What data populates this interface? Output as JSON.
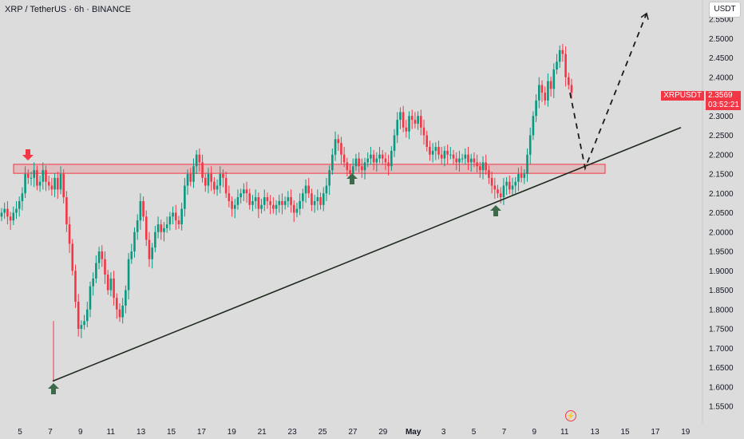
{
  "header": {
    "symbol_title": "XRP / TetherUS · 6h · BINANCE",
    "currency": "USDT"
  },
  "price_tags": {
    "symbol": "XRPUSDT",
    "last_price": "2.3569",
    "countdown": "03:52:21"
  },
  "colors": {
    "background": "#dcdcdc",
    "up": "#089981",
    "down": "#f23645",
    "zone": "#f23645",
    "trendline": "#1e2a1e",
    "arrow_up": "#3d6b4a",
    "arrow_down": "#f23645"
  },
  "icons": {
    "event": "lightning-icon"
  },
  "chart_data": {
    "type": "candlestick",
    "timeframe": "6h",
    "price_scale": {
      "ylim": [
        1.5,
        2.6
      ],
      "ticks": [
        "1.5500",
        "1.6000",
        "1.6500",
        "1.7000",
        "1.7500",
        "1.8000",
        "1.8500",
        "1.9000",
        "1.9500",
        "2.0000",
        "2.0500",
        "2.1000",
        "2.1500",
        "2.2000",
        "2.2500",
        "2.3000",
        "2.3500",
        "2.4000",
        "2.4500",
        "2.5000",
        "2.5500"
      ]
    },
    "time_axis": {
      "labels": [
        "5",
        "7",
        "9",
        "11",
        "13",
        "15",
        "17",
        "19",
        "21",
        "23",
        "25",
        "27",
        "29",
        "May",
        "3",
        "5",
        "7",
        "9",
        "11",
        "13",
        "15",
        "17",
        "19"
      ]
    },
    "candles_close": [
      2.05,
      2.06,
      2.04,
      2.03,
      2.05,
      2.06,
      2.08,
      2.1,
      2.15,
      2.14,
      2.14,
      2.16,
      2.12,
      2.13,
      2.16,
      2.13,
      2.12,
      2.11,
      2.14,
      2.11,
      2.15,
      2.09,
      2.02,
      1.97,
      1.9,
      1.82,
      1.75,
      1.76,
      1.77,
      1.8,
      1.86,
      1.88,
      1.92,
      1.95,
      1.93,
      1.89,
      1.85,
      1.88,
      1.83,
      1.8,
      1.78,
      1.81,
      1.85,
      1.93,
      1.95,
      2.0,
      2.03,
      2.08,
      2.04,
      1.98,
      1.93,
      1.96,
      2.0,
      2.02,
      2.0,
      2.01,
      2.02,
      2.04,
      2.05,
      2.03,
      2.02,
      2.06,
      2.12,
      2.15,
      2.13,
      2.17,
      2.2,
      2.18,
      2.14,
      2.12,
      2.15,
      2.13,
      2.11,
      2.12,
      2.15,
      2.14,
      2.1,
      2.08,
      2.06,
      2.07,
      2.09,
      2.1,
      2.11,
      2.1,
      2.07,
      2.08,
      2.09,
      2.06,
      2.07,
      2.09,
      2.08,
      2.07,
      2.06,
      2.07,
      2.08,
      2.07,
      2.08,
      2.09,
      2.07,
      2.05,
      2.06,
      2.08,
      2.1,
      2.12,
      2.1,
      2.07,
      2.08,
      2.09,
      2.07,
      2.1,
      2.12,
      2.16,
      2.2,
      2.24,
      2.23,
      2.2,
      2.18,
      2.16,
      2.15,
      2.17,
      2.19,
      2.17,
      2.16,
      2.18,
      2.19,
      2.2,
      2.18,
      2.19,
      2.2,
      2.19,
      2.18,
      2.17,
      2.21,
      2.25,
      2.29,
      2.31,
      2.27,
      2.26,
      2.3,
      2.29,
      2.28,
      2.3,
      2.27,
      2.25,
      2.22,
      2.2,
      2.21,
      2.22,
      2.2,
      2.19,
      2.21,
      2.2,
      2.2,
      2.19,
      2.18,
      2.19,
      2.19,
      2.2,
      2.18,
      2.19,
      2.18,
      2.17,
      2.16,
      2.18,
      2.16,
      2.14,
      2.12,
      2.11,
      2.1,
      2.09,
      2.12,
      2.13,
      2.11,
      2.12,
      2.13,
      2.15,
      2.14,
      2.15,
      2.2,
      2.25,
      2.3,
      2.34,
      2.38,
      2.36,
      2.34,
      2.39,
      2.37,
      2.42,
      2.44,
      2.47,
      2.46,
      2.4,
      2.38,
      2.36
    ],
    "markers": [
      {
        "type": "arrow-down",
        "x_label": "5",
        "price": 2.2
      },
      {
        "type": "arrow-up",
        "x_label": "7",
        "price": 1.6
      },
      {
        "type": "arrow-up",
        "x_label": "27",
        "price": 2.12
      },
      {
        "type": "arrow-up",
        "x_label": "7",
        "price": 2.05
      }
    ],
    "zone": {
      "from_price": 2.16,
      "to_price": 2.175
    },
    "trendline": {
      "from_price": 1.615,
      "to_price": 2.27
    },
    "projection": {
      "points": [
        2.36,
        2.165,
        2.565
      ]
    },
    "grid": false
  }
}
